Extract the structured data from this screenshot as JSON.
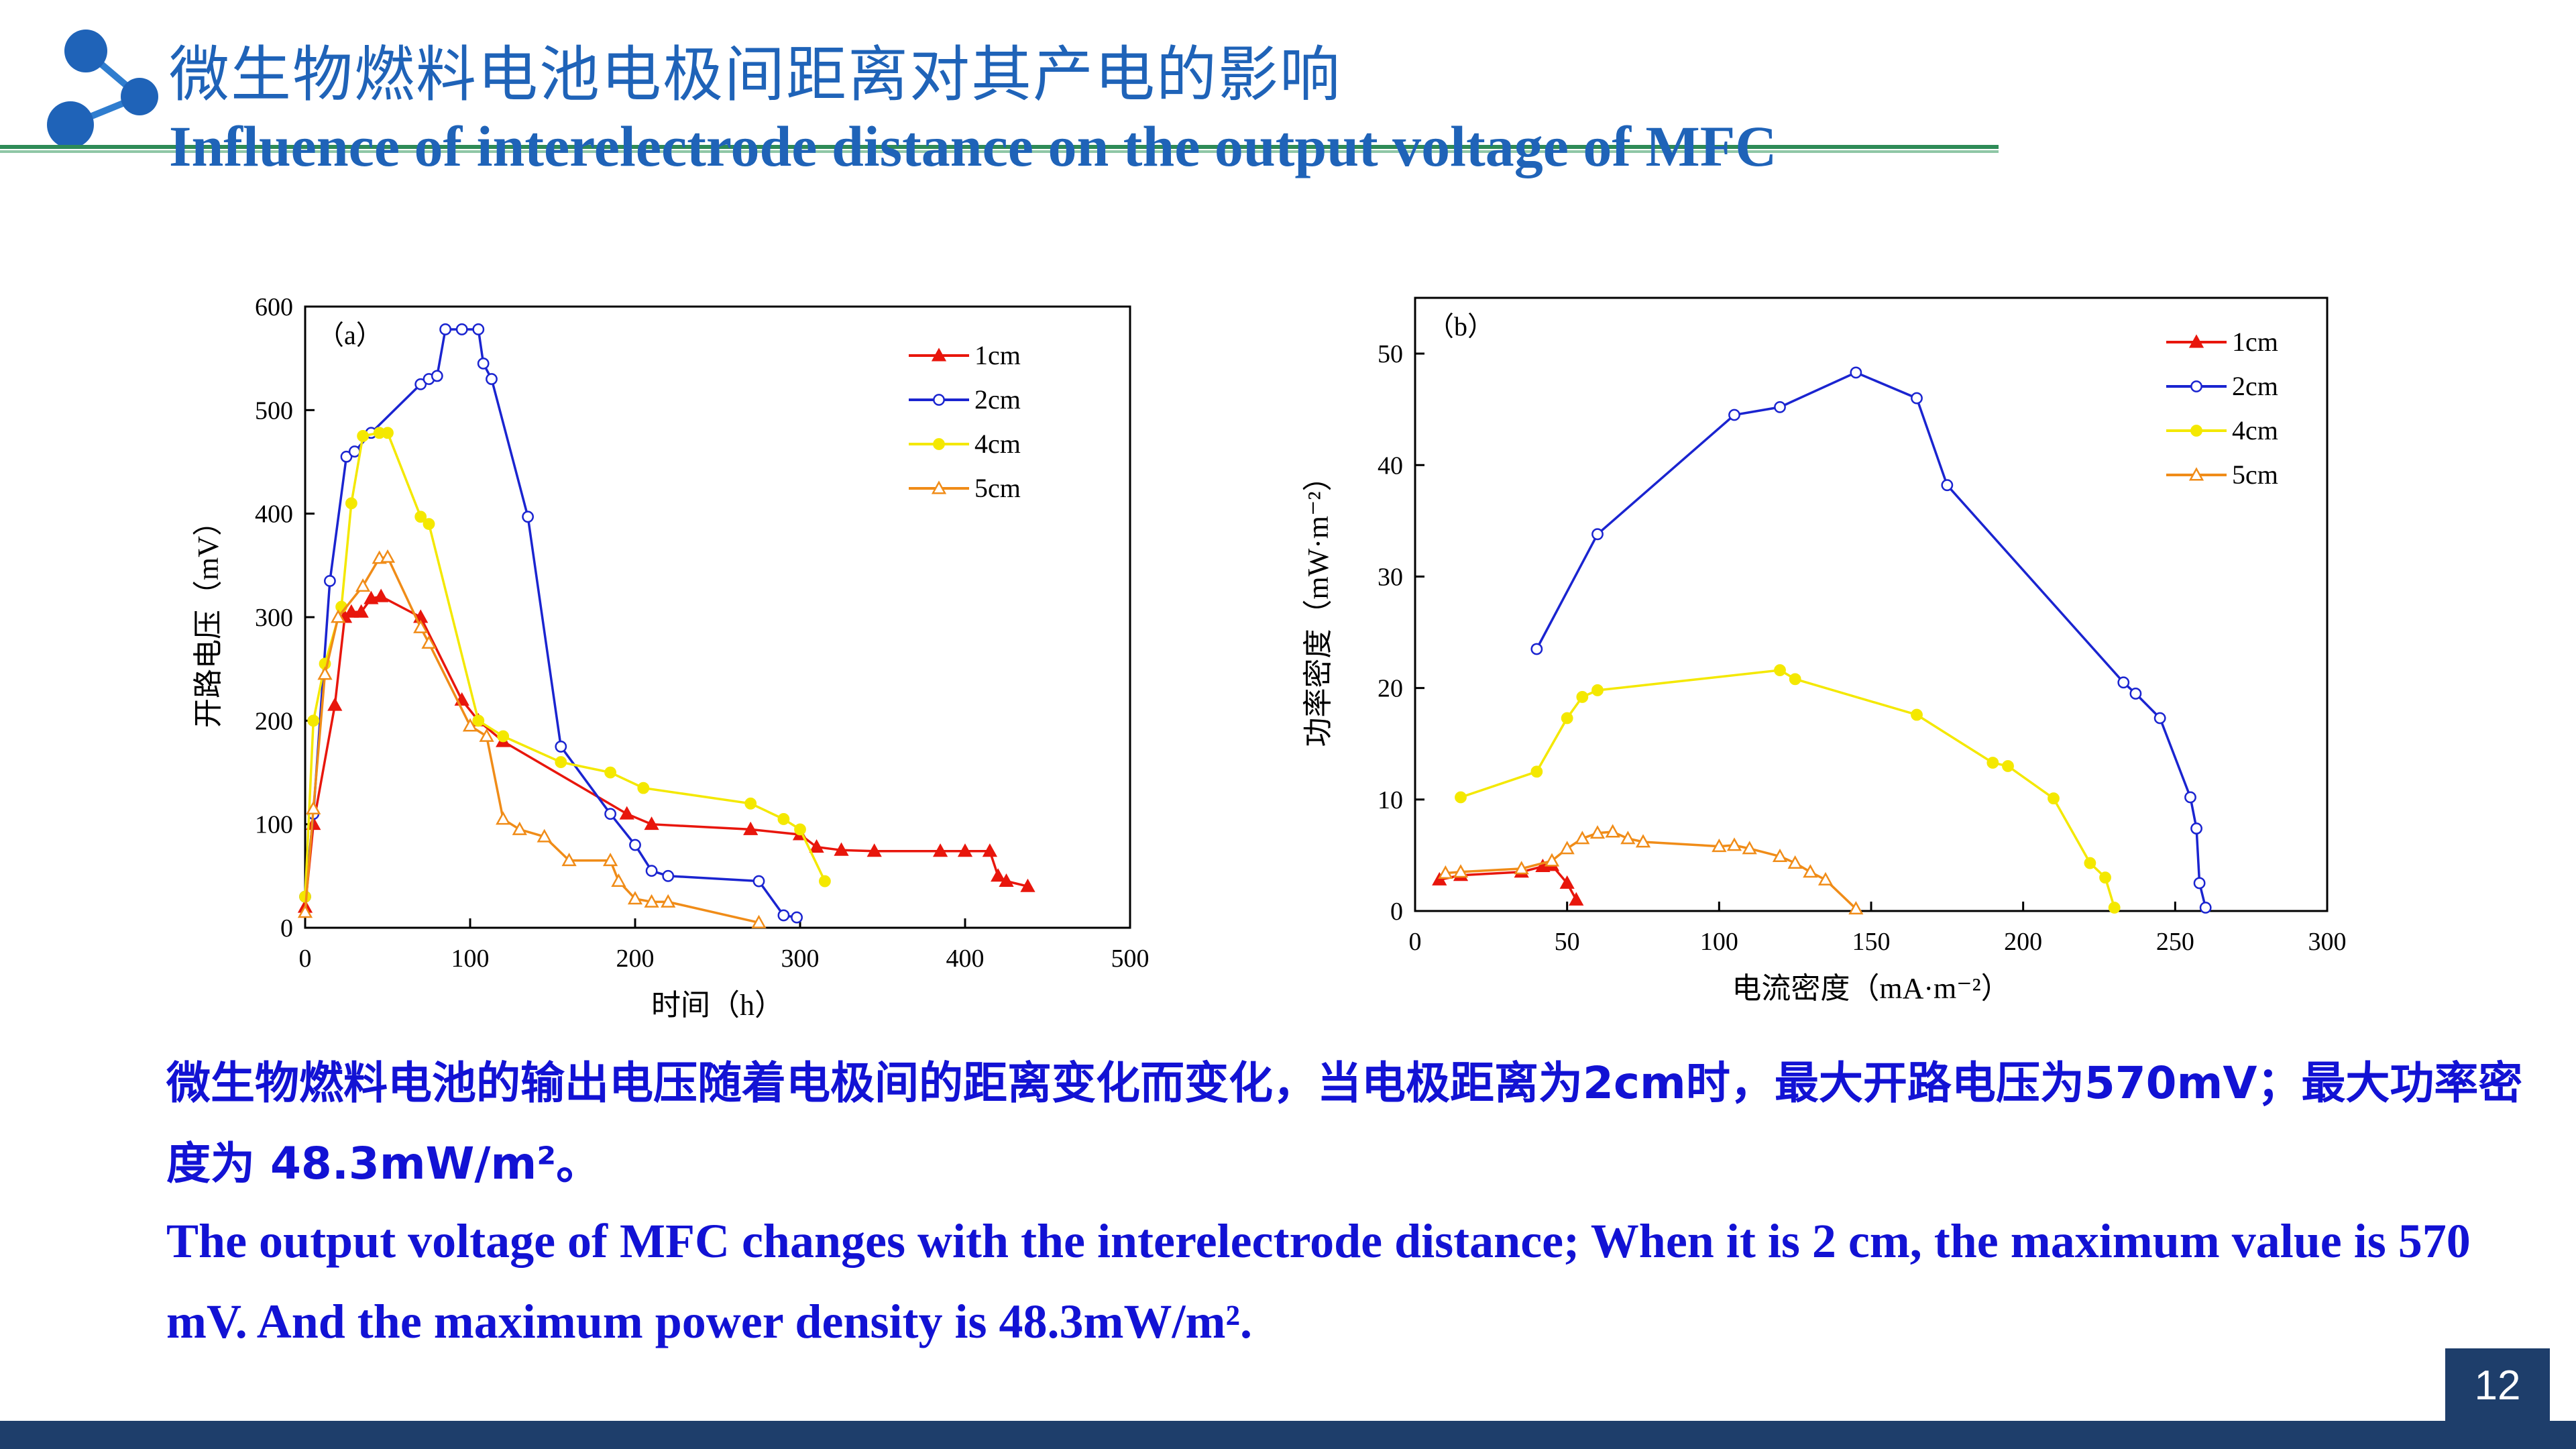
{
  "header": {
    "title_cn": "微生物燃料电池电极间距离对其产电的影响",
    "title_en": "Influence of interelectrode distance on the output voltage of  MFC",
    "logo_icon": "molecule-icon",
    "accent_color": "#1f63b8",
    "line_color": "#2e8b57"
  },
  "chart_data": [
    {
      "type": "line",
      "panel_label": "（a）",
      "xlabel": "时间（h）",
      "ylabel": "开路电压（mV）",
      "xlim": [
        0,
        500
      ],
      "ylim": [
        0,
        600
      ],
      "xticks": [
        0,
        100,
        200,
        300,
        400,
        500
      ],
      "yticks": [
        0,
        100,
        200,
        300,
        400,
        500,
        600
      ],
      "grid": false,
      "legend_position": "top-right",
      "series": [
        {
          "name": "1cm",
          "color": "#e8160c",
          "marker": "triangle-filled",
          "x": [
            0,
            5,
            18,
            24,
            28,
            34,
            40,
            46,
            70,
            95,
            105,
            120,
            195,
            210,
            270,
            300,
            310,
            325,
            345,
            385,
            400,
            415,
            420,
            425,
            438
          ],
          "y": [
            20,
            100,
            215,
            300,
            305,
            305,
            318,
            320,
            300,
            220,
            200,
            180,
            110,
            100,
            95,
            90,
            78,
            75,
            74,
            74,
            74,
            74,
            50,
            45,
            40
          ]
        },
        {
          "name": "2cm",
          "color": "#1a24d0",
          "marker": "circle-open",
          "x": [
            0,
            5,
            15,
            25,
            30,
            40,
            70,
            75,
            80,
            85,
            95,
            105,
            108,
            113,
            135,
            155,
            185,
            200,
            210,
            220,
            275,
            290,
            298
          ],
          "y": [
            30,
            110,
            335,
            455,
            460,
            478,
            525,
            530,
            533,
            578,
            578,
            578,
            545,
            530,
            397,
            175,
            110,
            80,
            55,
            50,
            45,
            12,
            10
          ]
        },
        {
          "name": "4cm",
          "color": "#f4e800",
          "marker": "circle-filled",
          "x": [
            0,
            5,
            12,
            22,
            28,
            35,
            45,
            50,
            70,
            75,
            105,
            120,
            155,
            185,
            205,
            270,
            290,
            300,
            315
          ],
          "y": [
            30,
            200,
            255,
            310,
            410,
            475,
            478,
            478,
            397,
            390,
            200,
            185,
            160,
            150,
            135,
            120,
            105,
            95,
            45
          ]
        },
        {
          "name": "5cm",
          "color": "#f08c18",
          "marker": "triangle-open",
          "x": [
            0,
            5,
            12,
            20,
            35,
            45,
            50,
            70,
            75,
            100,
            110,
            120,
            130,
            145,
            160,
            185,
            190,
            200,
            210,
            220,
            275
          ],
          "y": [
            15,
            115,
            245,
            300,
            330,
            357,
            358,
            290,
            275,
            195,
            185,
            105,
            95,
            88,
            65,
            65,
            45,
            28,
            25,
            25,
            5
          ]
        }
      ]
    },
    {
      "type": "line",
      "panel_label": "（b）",
      "xlabel": "电流密度（mA·m⁻²）",
      "ylabel": "功率密度（mW·m⁻²）",
      "xlim": [
        0,
        300
      ],
      "ylim": [
        0,
        55
      ],
      "xticks": [
        0,
        50,
        100,
        150,
        200,
        250,
        300
      ],
      "yticks": [
        0,
        10,
        20,
        30,
        40,
        50
      ],
      "grid": false,
      "legend_position": "top-right",
      "series": [
        {
          "name": "1cm",
          "color": "#e8160c",
          "marker": "triangle-filled",
          "x": [
            8,
            15,
            35,
            42,
            45,
            50,
            53
          ],
          "y": [
            2.8,
            3.2,
            3.5,
            4.0,
            4.1,
            2.5,
            1.0
          ]
        },
        {
          "name": "2cm",
          "color": "#1a24d0",
          "marker": "circle-open",
          "x": [
            40,
            60,
            105,
            120,
            145,
            165,
            175,
            233,
            237,
            245,
            255,
            257,
            258,
            260
          ],
          "y": [
            23.5,
            33.8,
            44.5,
            45.2,
            48.3,
            46.0,
            38.2,
            20.5,
            19.5,
            17.3,
            10.2,
            7.4,
            2.5,
            0.3
          ]
        },
        {
          "name": "4cm",
          "color": "#f4e800",
          "marker": "circle-filled",
          "x": [
            15,
            40,
            50,
            55,
            60,
            120,
            125,
            165,
            190,
            195,
            210,
            222,
            227,
            230
          ],
          "y": [
            10.2,
            12.5,
            17.3,
            19.2,
            19.8,
            21.6,
            20.8,
            17.6,
            13.3,
            13.0,
            10.1,
            4.3,
            3.0,
            0.3
          ]
        },
        {
          "name": "5cm",
          "color": "#f08c18",
          "marker": "triangle-open",
          "x": [
            10,
            15,
            35,
            45,
            50,
            55,
            60,
            65,
            70,
            75,
            100,
            105,
            110,
            120,
            125,
            130,
            135,
            145
          ],
          "y": [
            3.4,
            3.5,
            3.8,
            4.5,
            5.6,
            6.5,
            7.0,
            7.1,
            6.5,
            6.2,
            5.8,
            5.9,
            5.6,
            4.9,
            4.3,
            3.5,
            2.8,
            0.2
          ]
        }
      ]
    }
  ],
  "summary": {
    "cn": "微生物燃料电池的输出电压随着电极间的距离变化而变化，当电极距离为2cm时，最大开路电压为570mV；最大功率密度为 48.3mW/m²。",
    "en": "The output voltage of MFC changes with the interelectrode distance; When it is 2 cm, the maximum value is 570 mV. And the maximum power density is 48.3mW/m².",
    "color": "#1212d4"
  },
  "footer": {
    "page_number": "12",
    "bar_color": "#1e3e6b"
  }
}
